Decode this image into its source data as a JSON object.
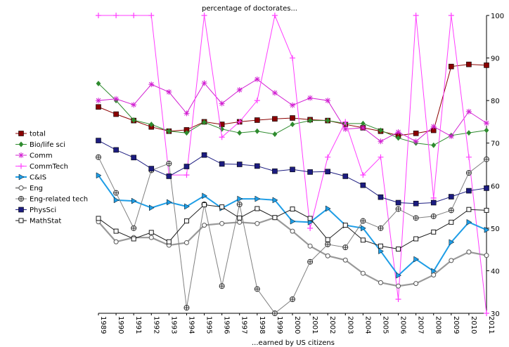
{
  "chart_data": {
    "type": "line",
    "title": "percentage of doctorates...",
    "xlabel": "...earned by US citizens",
    "ylabel": "",
    "x": [
      "1989",
      "1990",
      "1991",
      "1992",
      "1993",
      "1994",
      "1995",
      "1996",
      "1997",
      "1998",
      "1999",
      "2000",
      "2001",
      "2002",
      "2003",
      "2004",
      "2005",
      "2006",
      "2007",
      "2008",
      "2009",
      "2010",
      "2011"
    ],
    "ylim": [
      30,
      100
    ],
    "yticks": [
      "30",
      "40",
      "50",
      "60",
      "70",
      "80",
      "90",
      "100"
    ],
    "y_axis_side": "right",
    "grid": false,
    "legend_position": "left",
    "series": [
      {
        "name": "total",
        "color": "#8b0000",
        "marker": "square-filled",
        "values": [
          78.5,
          76.8,
          75.3,
          73.8,
          72.8,
          73.1,
          75.0,
          74.4,
          75.0,
          75.4,
          75.7,
          75.9,
          75.5,
          75.3,
          74.4,
          73.6,
          72.8,
          71.8,
          72.3,
          73.0,
          88.0,
          88.5,
          88.3
        ]
      },
      {
        "name": "Bio/life sci",
        "color": "#2e8b2e",
        "marker": "diamond",
        "values": [
          84.0,
          80.0,
          75.4,
          74.4,
          72.8,
          72.4,
          74.9,
          73.3,
          72.4,
          72.8,
          72.1,
          74.4,
          75.3,
          75.3,
          74.6,
          74.6,
          73.0,
          71.2,
          70.0,
          69.5,
          71.8,
          72.4,
          73.0
        ]
      },
      {
        "name": "Comm",
        "color": "#d21fd2",
        "marker": "star",
        "values": [
          80.0,
          80.4,
          79.0,
          83.8,
          82.0,
          77.0,
          84.1,
          79.3,
          82.5,
          85.0,
          81.8,
          78.9,
          80.6,
          80.0,
          73.3,
          73.6,
          70.4,
          72.6,
          70.4,
          73.9,
          71.6,
          77.4,
          74.7
        ]
      },
      {
        "name": "CommTech",
        "color": "#ff3dff",
        "marker": "plus",
        "values": [
          100.0,
          100.0,
          100.0,
          100.0,
          62.5,
          62.5,
          100.0,
          71.4,
          75.0,
          80.0,
          100.0,
          90.0,
          50.0,
          66.7,
          75.0,
          62.5,
          66.7,
          33.3,
          100.0,
          57.1,
          100.0,
          66.7,
          30.0
        ]
      },
      {
        "name": "C&IS",
        "color": "#1e9de6",
        "marker": "triangle-right",
        "values": [
          62.4,
          56.6,
          56.4,
          54.8,
          56.1,
          55.1,
          57.6,
          54.7,
          56.9,
          56.9,
          56.6,
          51.6,
          51.4,
          54.6,
          50.7,
          50.0,
          44.6,
          38.9,
          42.7,
          39.9,
          46.7,
          51.4,
          49.6
        ]
      },
      {
        "name": "Eng",
        "color": "#999999",
        "marker": "circle-open",
        "values": [
          51.5,
          46.8,
          47.8,
          47.8,
          46.0,
          46.6,
          50.7,
          51.1,
          51.4,
          51.1,
          52.5,
          49.3,
          45.8,
          43.5,
          42.5,
          39.4,
          37.2,
          36.4,
          37.0,
          39.0,
          42.4,
          44.4,
          43.6
        ]
      },
      {
        "name": "Eng-related tech",
        "color": "#808080",
        "marker": "crossed-circle",
        "values": [
          66.7,
          58.3,
          50.0,
          63.6,
          65.2,
          31.3,
          55.6,
          36.4,
          55.6,
          35.7,
          30.0,
          33.3,
          42.1,
          46.2,
          45.5,
          51.7,
          50.0,
          54.5,
          52.4,
          52.8,
          54.2,
          63.0,
          66.2
        ]
      },
      {
        "name": "PhysSci",
        "color": "#1c1c80",
        "marker": "square-filled",
        "values": [
          70.6,
          68.4,
          66.6,
          64.0,
          62.2,
          64.5,
          67.2,
          65.1,
          65.0,
          64.6,
          63.4,
          63.8,
          63.2,
          63.3,
          62.2,
          60.1,
          57.3,
          56.0,
          55.8,
          56.0,
          57.4,
          58.8,
          59.4
        ]
      },
      {
        "name": "MathStat",
        "color": "#1a1a1a",
        "marker": "square-open",
        "values": [
          52.3,
          49.3,
          47.5,
          49.0,
          46.8,
          51.7,
          55.5,
          55.0,
          52.4,
          54.6,
          52.5,
          54.5,
          52.3,
          47.3,
          50.7,
          47.2,
          45.8,
          45.1,
          47.5,
          49.1,
          51.4,
          54.4,
          54.2
        ]
      }
    ]
  }
}
